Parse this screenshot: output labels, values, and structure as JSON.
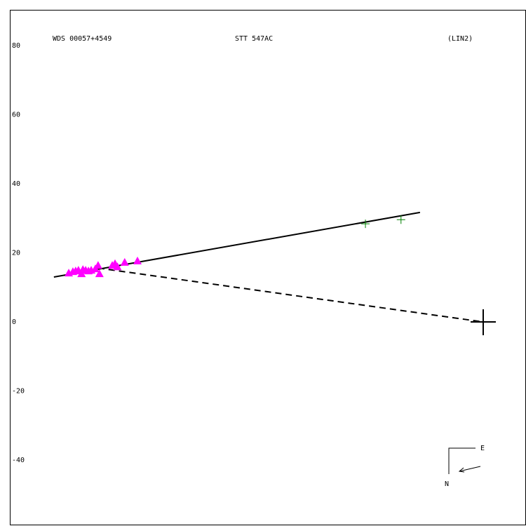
{
  "chart_data": {
    "type": "scatter",
    "title": "WDS 00057+4549",
    "subtitle": "STT 547AC",
    "annotations": [
      "(LIN2)",
      "E",
      "N"
    ],
    "xlim": [
      -137.06,
      12.39
    ],
    "ylim": [
      -58.88,
      90.36
    ],
    "yticks": [
      80,
      60,
      40,
      20,
      0,
      -20,
      -40
    ],
    "series": [
      {
        "color": "#ff00ff",
        "marker": "triangle",
        "x": [
          -120.0,
          -118.8,
          -118.0,
          -117.2,
          -116.3,
          -115.9,
          -115.1,
          -114.3,
          -113.5,
          -112.3,
          -111.5,
          -111.1,
          -107.4,
          -106.6,
          -105.9,
          -103.8,
          -100.1
        ],
        "values": [
          14.2,
          14.6,
          14.8,
          15.0,
          14.0,
          15.2,
          15.0,
          14.8,
          15.0,
          15.4,
          16.4,
          14.0,
          16.4,
          16.9,
          16.0,
          17.3,
          17.7
        ]
      },
      {
        "color": "#008000",
        "marker": "plus",
        "x": [
          -34.1,
          -23.8
        ],
        "values": [
          28.4,
          29.6
        ]
      }
    ],
    "lines": [
      {
        "color": "#000000",
        "dashed": false,
        "x": [
          -124.3,
          -18.3
        ],
        "values": [
          13.0,
          31.7
        ]
      },
      {
        "color": "#000000",
        "dashed": true,
        "x": [
          -111.5,
          0
        ],
        "values": [
          15.6,
          0
        ]
      }
    ],
    "origin": {
      "x": 0,
      "y": 0
    }
  }
}
